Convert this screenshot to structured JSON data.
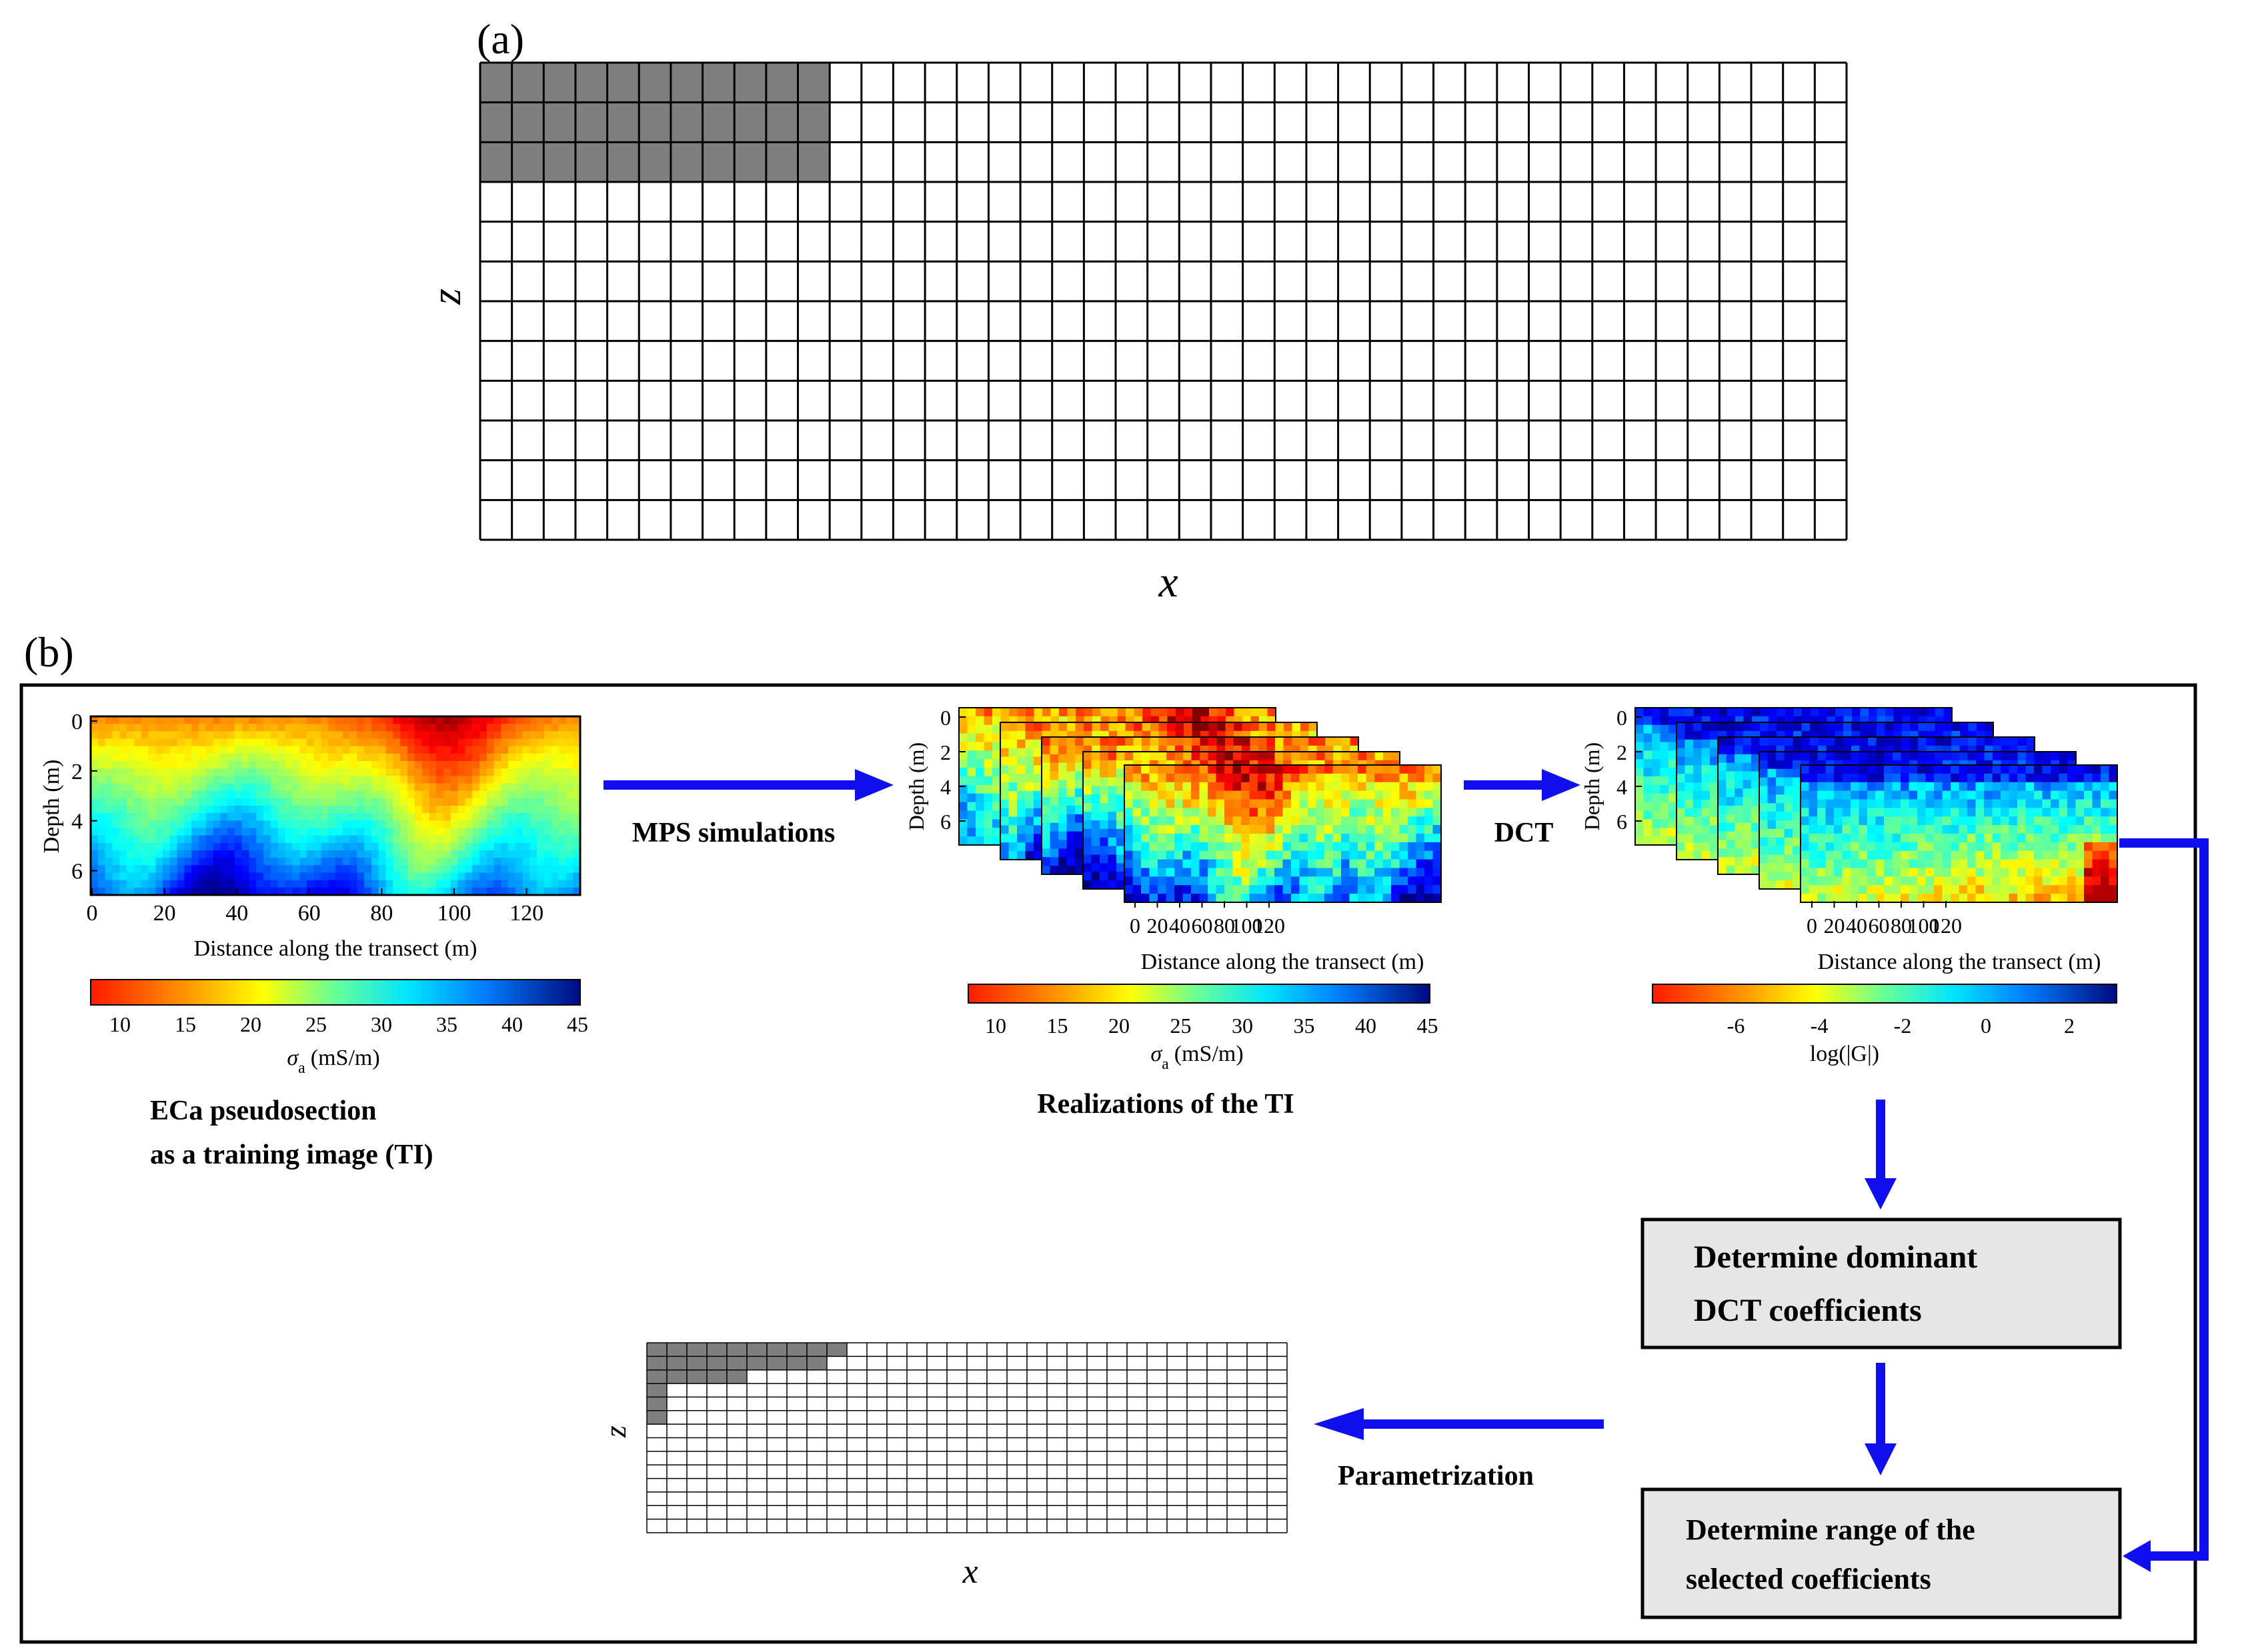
{
  "panel_a": {
    "label": "(a)",
    "grid": {
      "cols": 43,
      "rows": 12,
      "shaded_cols": 11,
      "shaded_rows": 3
    },
    "x_label": "x",
    "z_label": "z"
  },
  "panel_b": {
    "label": "(b)",
    "ti": {
      "ylabel": "Depth (m)",
      "xlabel": "Distance along the transect (m)",
      "yticks": [
        "0",
        "2",
        "4",
        "6"
      ],
      "xticks": [
        "0",
        "20",
        "40",
        "60",
        "80",
        "100",
        "120"
      ],
      "colorbar_ticks": [
        "10",
        "15",
        "20",
        "25",
        "30",
        "35",
        "40",
        "45"
      ],
      "colorbar_label_symbol": "σ",
      "colorbar_label_sub": "a",
      "colorbar_label_unit": "(mS/m)",
      "caption_line1": "ECa pseudosection",
      "caption_line2": "as a training image (TI)"
    },
    "realizations": {
      "ylabel": "Depth (m)",
      "xlabel": "Distance along the transect (m)",
      "yticks": [
        "0",
        "2",
        "4",
        "6"
      ],
      "xticks": [
        "0",
        "20",
        "40",
        "60",
        "80",
        "100",
        "120"
      ],
      "colorbar_ticks": [
        "10",
        "15",
        "20",
        "25",
        "30",
        "35",
        "40",
        "45"
      ],
      "colorbar_label_symbol": "σ",
      "colorbar_label_sub": "a",
      "colorbar_label_unit": "(mS/m)",
      "caption": "Realizations of the TI"
    },
    "dct": {
      "ylabel": "Depth (m)",
      "xlabel": "Distance along the transect (m)",
      "yticks": [
        "0",
        "2",
        "4",
        "6"
      ],
      "xticks": [
        "0",
        "20",
        "40",
        "60",
        "80",
        "100",
        "120"
      ],
      "colorbar_ticks": [
        "-6",
        "-4",
        "-2",
        "0",
        "2"
      ],
      "colorbar_label": "log(|G|)"
    },
    "arrows": {
      "mps": "MPS simulations",
      "dct": "DCT",
      "parametrization": "Parametrization"
    },
    "boxes": {
      "dominant_line1": "Determine dominant",
      "dominant_line2": "DCT coefficients",
      "range_line1": "Determine range of the",
      "range_line2": "selected coefficients"
    },
    "param_grid": {
      "cols": 32,
      "rows": 14,
      "shaded_row_counts": [
        10,
        9,
        5,
        1,
        1,
        1
      ],
      "x_label": "x",
      "z_label": "z"
    }
  },
  "colors": {
    "arrow": "#1010ee",
    "shade": "#7f7f7f",
    "box_fill": "#e6e6e6"
  }
}
